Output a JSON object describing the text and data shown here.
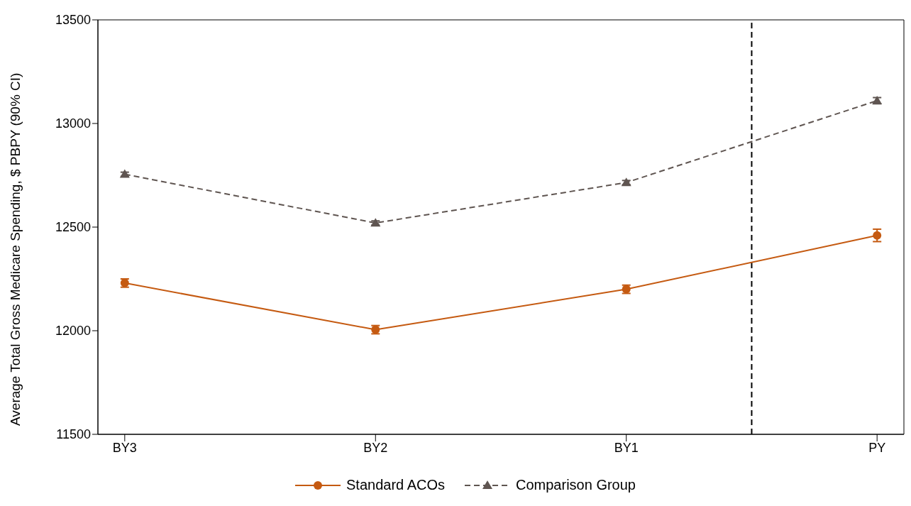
{
  "chart_data": {
    "type": "line",
    "ylabel": "Average Total Gross Medicare Spending, $ PBPY (90% CI)",
    "categories": [
      "BY3",
      "BY2",
      "BY1",
      "PY"
    ],
    "ylim": [
      11500,
      13500
    ],
    "yticks": [
      11500,
      12000,
      12500,
      13000,
      13500
    ],
    "grid": false,
    "legend": "bottom",
    "series": [
      {
        "name": "Standard ACOs",
        "color": "#c55a11",
        "values": [
          12230,
          12005,
          12200,
          12460
        ],
        "errors": [
          20,
          20,
          20,
          30
        ],
        "marker": "circle",
        "line_style": "solid"
      },
      {
        "name": "Comparison Group",
        "color": "#5f5551",
        "values": [
          12755,
          12520,
          12715,
          13110
        ],
        "errors": [
          10,
          10,
          10,
          15
        ],
        "marker": "triangle",
        "line_style": "dashed"
      }
    ]
  }
}
